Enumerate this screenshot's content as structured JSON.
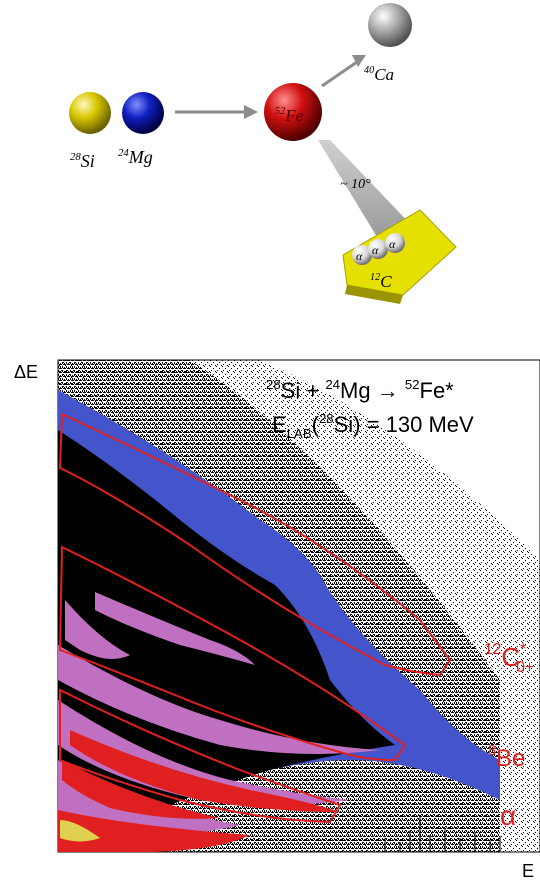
{
  "reaction_diagram": {
    "projectile_mass": "28",
    "projectile_symbol": "Si",
    "target_mass": "24",
    "target_symbol": "Mg",
    "compound_mass": "52",
    "compound_symbol": "Fe",
    "residue_mass": "40",
    "residue_symbol": "Ca",
    "angle_label": "~ 10°",
    "alpha_symbol": "α",
    "carbon_mass": "12",
    "carbon_symbol": "C",
    "colors": {
      "silicon": "#e0d000",
      "magnesium": "#1020c0",
      "iron": "#d01010",
      "calcium": "#a8a8a8",
      "detector": "#e6e000",
      "cone": "#9a9a9a",
      "arrow": "#8c8c8c"
    }
  },
  "spectrum": {
    "y_axis_label": "ΔE",
    "x_axis_label": "E",
    "reaction": {
      "m1": "28",
      "s1": "Si",
      "plus": "+",
      "m2": "24",
      "s2": "Mg",
      "arrow": "→",
      "m3": "52",
      "s3": "Fe*"
    },
    "energy": {
      "e": "E",
      "sub": "LAB",
      "open": "(",
      "m": "28",
      "s": "Si",
      "close": ")",
      "eq": "=",
      "value": "130 MeV"
    },
    "gate_labels": {
      "c12_mass": "12",
      "c12_symbol": "C",
      "c12_sup": "*",
      "c12_sub": "0+",
      "be8_mass": "8",
      "be8_symbol": "Be",
      "alpha": "α"
    },
    "colors": {
      "gate": "#e02020",
      "blue_band": "#4455cc",
      "pink_band": "#c070c0",
      "red_band": "#e02020",
      "black": "#000000"
    }
  }
}
